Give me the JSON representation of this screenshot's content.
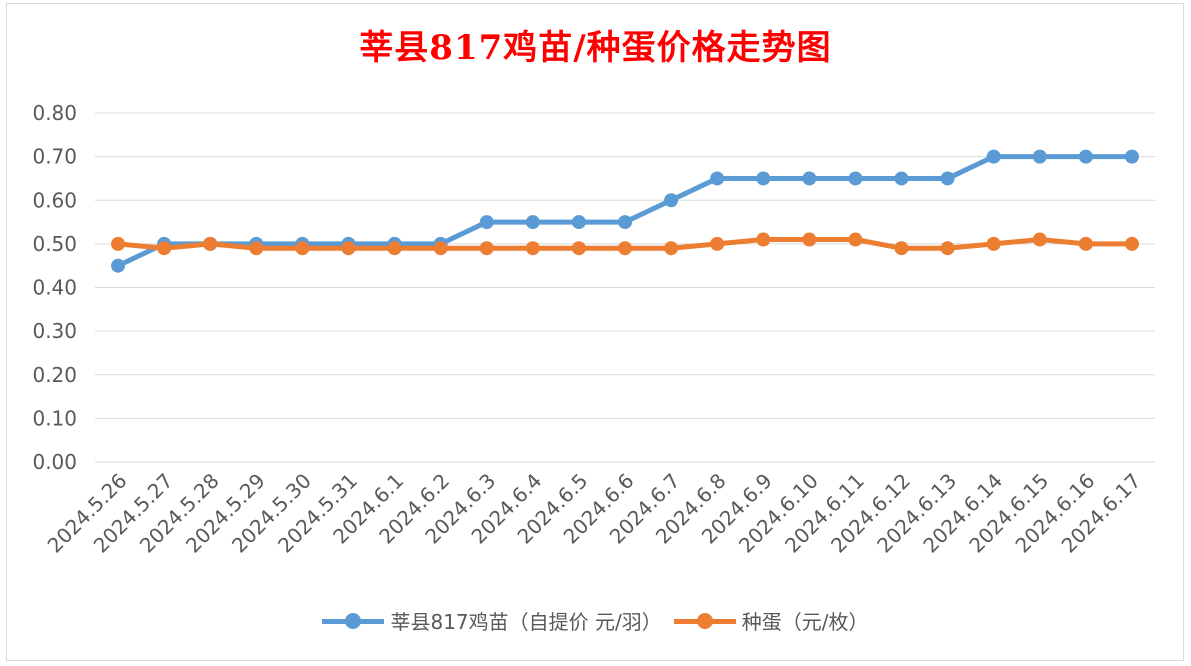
{
  "chart_data": {
    "type": "line",
    "title": "莘县817鸡苗/种蛋价格走势图",
    "categories": [
      "2024.5.26",
      "2024.5.27",
      "2024.5.28",
      "2024.5.29",
      "2024.5.30",
      "2024.5.31",
      "2024.6.1",
      "2024.6.2",
      "2024.6.3",
      "2024.6.4",
      "2024.6.5",
      "2024.6.6",
      "2024.6.7",
      "2024.6.8",
      "2024.6.9",
      "2024.6.10",
      "2024.6.11",
      "2024.6.12",
      "2024.6.13",
      "2024.6.14",
      "2024.6.15",
      "2024.6.16",
      "2024.6.17"
    ],
    "series": [
      {
        "name": "莘县817鸡苗（自提价 元/羽）",
        "color": "#5b9bd5",
        "values": [
          0.45,
          0.5,
          0.5,
          0.5,
          0.5,
          0.5,
          0.5,
          0.5,
          0.55,
          0.55,
          0.55,
          0.55,
          0.6,
          0.65,
          0.65,
          0.65,
          0.65,
          0.65,
          0.65,
          0.7,
          0.7,
          0.7,
          0.7
        ]
      },
      {
        "name": "种蛋（元/枚）",
        "color": "#ed7d31",
        "values": [
          0.5,
          0.49,
          0.5,
          0.49,
          0.49,
          0.49,
          0.49,
          0.49,
          0.49,
          0.49,
          0.49,
          0.49,
          0.49,
          0.5,
          0.51,
          0.51,
          0.51,
          0.49,
          0.49,
          0.5,
          0.51,
          0.5,
          0.5
        ]
      }
    ],
    "yticks": [
      "0.00",
      "0.10",
      "0.20",
      "0.30",
      "0.40",
      "0.50",
      "0.60",
      "0.70",
      "0.80"
    ],
    "ylim": [
      0,
      0.8
    ],
    "grid": true,
    "legend": "bottom"
  }
}
